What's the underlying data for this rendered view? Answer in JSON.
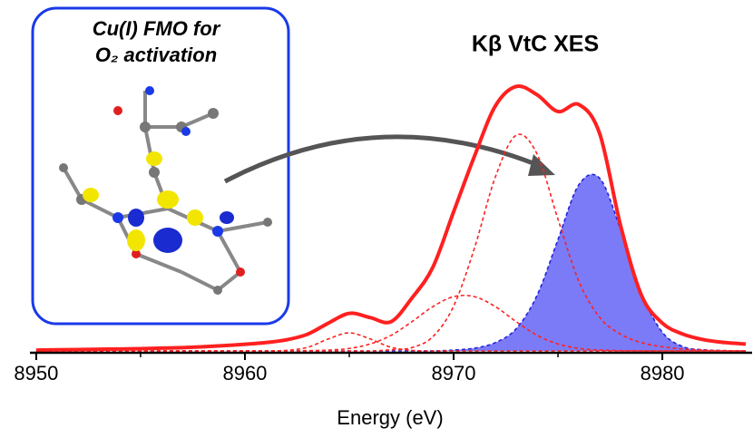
{
  "chart_data": {
    "type": "line",
    "title": "Kβ VtC XES",
    "x_label": "Energy (eV)",
    "inset_title": [
      "Cu(I) FMO for",
      "O₂ activation"
    ],
    "x": [
      8950,
      8951,
      8952,
      8953,
      8954,
      8955,
      8956,
      8957,
      8958,
      8959,
      8960,
      8961,
      8962,
      8963,
      8964,
      8965,
      8966,
      8967,
      8968,
      8969,
      8970,
      8971,
      8972,
      8973,
      8974,
      8975,
      8976,
      8977,
      8978,
      8979,
      8980,
      8981,
      8982,
      8983,
      8984
    ],
    "series": [
      {
        "color": "#7b7bf7",
        "stroke": "#2222dd",
        "style": "dashed",
        "fill": true,
        "values": [
          0,
          0,
          0,
          0,
          0,
          0,
          0,
          0,
          0,
          0,
          0,
          0,
          0,
          0,
          0,
          0,
          0,
          0,
          0,
          0,
          0.003,
          0.01,
          0.03,
          0.08,
          0.2,
          0.4,
          0.597,
          0.62,
          0.436,
          0.208,
          0.067,
          0.015,
          0.004,
          0.001,
          0
        ]
      },
      {
        "color": "#ff2020",
        "style": "dashed",
        "fill": false,
        "values": [
          0,
          0,
          0,
          0,
          0,
          0,
          0,
          0,
          0,
          0,
          0,
          0,
          0.002,
          0.013,
          0.043,
          0.065,
          0.043,
          0.013,
          0.002,
          0,
          0,
          0,
          0,
          0,
          0,
          0,
          0,
          0,
          0,
          0,
          0,
          0,
          0,
          0,
          0
        ]
      },
      {
        "color": "#ff2020",
        "style": "dashed",
        "fill": false,
        "values": [
          0,
          0,
          0,
          0,
          0,
          0,
          0,
          0,
          0,
          0,
          0,
          0,
          0.001,
          0.001,
          0.003,
          0.009,
          0.025,
          0.056,
          0.105,
          0.159,
          0.195,
          0.195,
          0.159,
          0.105,
          0.056,
          0.025,
          0.009,
          0.003,
          0.001,
          0,
          0,
          0,
          0,
          0,
          0
        ]
      },
      {
        "color": "#ff2020",
        "style": "dashed",
        "fill": false,
        "values": [
          0,
          0,
          0,
          0,
          0,
          0,
          0,
          0,
          0,
          0,
          0,
          0,
          0,
          0,
          0,
          0,
          0,
          0.004,
          0.012,
          0.051,
          0.161,
          0.37,
          0.625,
          0.775,
          0.707,
          0.473,
          0.25,
          0.12,
          0.06,
          0.03,
          0.015,
          0.007,
          0.003,
          0.001,
          0
        ]
      },
      {
        "color": "#ff2020",
        "style": "solid",
        "fill": false,
        "values": [
          0.003,
          0.004,
          0.005,
          0.006,
          0.007,
          0.008,
          0.01,
          0.012,
          0.015,
          0.019,
          0.024,
          0.03,
          0.04,
          0.06,
          0.1,
          0.135,
          0.12,
          0.105,
          0.19,
          0.3,
          0.5,
          0.7,
          0.88,
          0.95,
          0.92,
          0.86,
          0.885,
          0.78,
          0.45,
          0.2,
          0.1,
          0.06,
          0.04,
          0.03,
          0.025
        ]
      }
    ],
    "xlim": [
      8949.7,
      8984.3
    ],
    "ylim": [
      0,
      1
    ],
    "xticks": [
      8950,
      8960,
      8970,
      8980
    ],
    "xminorticks": [
      8955,
      8965,
      8975
    ]
  }
}
